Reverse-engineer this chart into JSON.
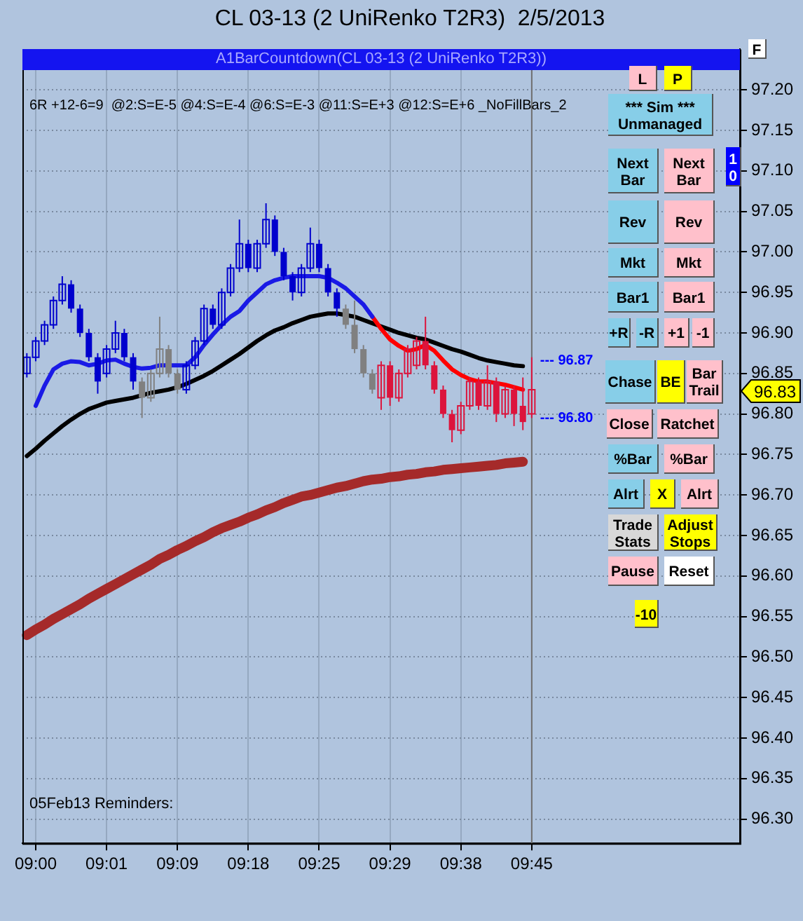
{
  "chart_data": {
    "type": "candlestick",
    "title": "CL 03-13 (2 UniRenko T2R3)  2/5/2013",
    "categories": [
      null,
      "09:00",
      null,
      null,
      null,
      null,
      null,
      null,
      null,
      "09:01",
      null,
      null,
      null,
      null,
      null,
      null,
      null,
      "09:09",
      null,
      null,
      null,
      null,
      null,
      null,
      null,
      "09:18",
      null,
      null,
      null,
      null,
      null,
      null,
      null,
      "09:25",
      null,
      null,
      null,
      null,
      null,
      null,
      null,
      "09:29",
      null,
      null,
      null,
      null,
      null,
      null,
      null,
      "09:38",
      null,
      null,
      null,
      null,
      null,
      null,
      null,
      "09:45",
      null,
      null,
      null,
      null,
      null,
      null,
      null,
      null,
      null,
      null,
      null,
      null,
      null,
      null,
      null,
      null,
      null,
      null,
      null,
      null,
      null,
      null,
      null
    ],
    "ohlc": [
      [
        96.85,
        96.875,
        96.845,
        96.87
      ],
      [
        96.87,
        96.895,
        96.865,
        96.89
      ],
      [
        96.89,
        96.915,
        96.885,
        96.91
      ],
      [
        96.91,
        96.945,
        96.905,
        96.94
      ],
      [
        96.94,
        96.97,
        96.935,
        96.96
      ],
      [
        96.96,
        96.965,
        96.925,
        96.93
      ],
      [
        96.93,
        96.935,
        96.895,
        96.9
      ],
      [
        96.9,
        96.905,
        96.865,
        96.87
      ],
      [
        96.87,
        96.875,
        96.825,
        96.84
      ],
      [
        96.85,
        96.885,
        96.845,
        96.88
      ],
      [
        96.88,
        96.915,
        96.875,
        96.9
      ],
      [
        96.9,
        96.905,
        96.865,
        96.87
      ],
      [
        96.87,
        96.875,
        96.83,
        96.84
      ],
      [
        96.84,
        96.845,
        96.795,
        96.82
      ],
      [
        96.82,
        96.855,
        96.815,
        96.85
      ],
      [
        96.85,
        96.92,
        96.845,
        96.88
      ],
      [
        96.88,
        96.885,
        96.845,
        96.85
      ],
      [
        96.85,
        96.855,
        96.825,
        96.83
      ],
      [
        96.83,
        96.865,
        96.825,
        96.86
      ],
      [
        96.86,
        96.895,
        96.855,
        96.89
      ],
      [
        96.89,
        96.935,
        96.885,
        96.93
      ],
      [
        96.93,
        96.935,
        96.905,
        96.91
      ],
      [
        96.91,
        96.955,
        96.905,
        96.95
      ],
      [
        96.95,
        96.985,
        96.945,
        96.98
      ],
      [
        96.98,
        97.04,
        96.975,
        97.01
      ],
      [
        97.01,
        97.015,
        96.975,
        96.98
      ],
      [
        96.98,
        97.015,
        96.975,
        97.01
      ],
      [
        97.01,
        97.06,
        97.005,
        97.04
      ],
      [
        97.04,
        97.045,
        96.995,
        97.0
      ],
      [
        97.0,
        97.005,
        96.965,
        96.97
      ],
      [
        96.97,
        96.975,
        96.94,
        96.95
      ],
      [
        96.95,
        96.985,
        96.945,
        96.98
      ],
      [
        96.98,
        97.03,
        96.975,
        97.01
      ],
      [
        97.01,
        97.015,
        96.975,
        96.98
      ],
      [
        96.98,
        96.985,
        96.945,
        96.95
      ],
      [
        96.95,
        96.955,
        96.92,
        96.93
      ],
      [
        96.93,
        96.935,
        96.905,
        96.91
      ],
      [
        96.91,
        96.94,
        96.875,
        96.88
      ],
      [
        96.88,
        96.885,
        96.845,
        96.85
      ],
      [
        96.85,
        96.855,
        96.825,
        96.83
      ],
      [
        96.82,
        96.865,
        96.805,
        96.86
      ],
      [
        96.86,
        96.865,
        96.81,
        96.82
      ],
      [
        96.82,
        96.855,
        96.815,
        96.85
      ],
      [
        96.85,
        96.885,
        96.845,
        96.88
      ],
      [
        96.86,
        96.895,
        96.855,
        96.89
      ],
      [
        96.89,
        96.92,
        96.855,
        96.86
      ],
      [
        96.86,
        96.865,
        96.825,
        96.83
      ],
      [
        96.83,
        96.835,
        96.795,
        96.8
      ],
      [
        96.8,
        96.805,
        96.765,
        96.78
      ],
      [
        96.78,
        96.815,
        96.775,
        96.81
      ],
      [
        96.81,
        96.845,
        96.805,
        96.84
      ],
      [
        96.84,
        96.845,
        96.805,
        96.81
      ],
      [
        96.81,
        96.86,
        96.805,
        96.84
      ],
      [
        96.84,
        96.845,
        96.79,
        96.8
      ],
      [
        96.8,
        96.835,
        96.795,
        96.83
      ],
      [
        96.83,
        96.835,
        96.785,
        96.8
      ],
      [
        96.81,
        96.845,
        96.78,
        96.79
      ],
      [
        96.8,
        96.87,
        96.795,
        96.83
      ],
      null,
      null,
      null,
      null,
      null,
      null,
      null,
      null,
      null,
      null,
      null,
      null,
      null,
      null,
      null,
      null,
      null,
      null,
      null,
      null,
      null,
      null,
      null
    ],
    "colors": [
      "#0000cd",
      "#0000cd",
      "#0000cd",
      "#0000cd",
      "#0000cd",
      "#0000cd",
      "#0000cd",
      "#0000cd",
      "#0000cd",
      "#0000cd",
      "#0000cd",
      "#0000cd",
      "#0000cd",
      "#808080",
      "#808080",
      "#808080",
      "#808080",
      "#808080",
      "#0000cd",
      "#0000cd",
      "#0000cd",
      "#0000cd",
      "#0000cd",
      "#0000cd",
      "#0000cd",
      "#0000cd",
      "#0000cd",
      "#0000cd",
      "#0000cd",
      "#0000cd",
      "#0000cd",
      "#0000cd",
      "#0000cd",
      "#0000cd",
      "#0000cd",
      "#0000cd",
      "#808080",
      "#808080",
      "#808080",
      "#808080",
      "#dc143c",
      "#dc143c",
      "#dc143c",
      "#dc143c",
      "#dc143c",
      "#dc143c",
      "#dc143c",
      "#dc143c",
      "#dc143c",
      "#dc143c",
      "#dc143c",
      "#dc143c",
      "#dc143c",
      "#dc143c",
      "#dc143c",
      "#dc143c",
      "#dc143c",
      "#dc143c",
      null,
      null,
      null,
      null,
      null,
      null,
      null,
      null,
      null,
      null,
      null,
      null,
      null,
      null,
      null,
      null,
      null,
      null,
      null,
      null,
      null,
      null,
      null
    ],
    "series": [
      {
        "type": "line",
        "color": "#1a1ae6",
        "values": [
          null,
          96.81,
          96.835,
          96.855,
          96.862,
          96.865,
          96.864,
          96.86,
          96.862,
          96.866,
          96.867,
          96.862,
          96.858,
          96.856,
          96.857,
          96.86,
          96.86,
          96.86,
          96.86,
          96.87,
          96.885,
          96.898,
          96.91,
          96.92,
          96.927,
          96.94,
          96.95,
          96.96,
          96.965,
          96.968,
          96.97,
          96.97,
          96.97,
          96.97,
          96.968,
          96.962,
          96.955,
          96.945,
          96.935,
          96.92,
          null,
          null,
          null,
          null,
          null,
          null,
          null,
          null,
          null,
          null,
          null,
          null,
          null,
          null,
          null,
          null,
          null,
          null,
          null,
          null,
          null,
          null,
          null,
          null,
          null,
          null,
          null,
          null,
          null,
          null,
          null,
          null,
          null,
          null,
          null,
          null,
          null,
          null,
          null,
          null,
          null
        ]
      },
      {
        "type": "line",
        "color": "#ff0000",
        "values": [
          null,
          null,
          null,
          null,
          null,
          null,
          null,
          null,
          null,
          null,
          null,
          null,
          null,
          null,
          null,
          null,
          null,
          null,
          null,
          null,
          null,
          null,
          null,
          null,
          null,
          null,
          null,
          null,
          null,
          null,
          null,
          null,
          null,
          null,
          null,
          null,
          null,
          null,
          null,
          96.92,
          96.905,
          96.892,
          96.884,
          96.878,
          96.88,
          96.885,
          96.878,
          96.866,
          96.855,
          96.848,
          96.843,
          96.84,
          96.84,
          96.838,
          96.836,
          96.833,
          96.83,
          null,
          null,
          null,
          null,
          null,
          null,
          null,
          null,
          null,
          null,
          null,
          null,
          null,
          null,
          null,
          null,
          null,
          null,
          null,
          null,
          null,
          null,
          null,
          null
        ]
      },
      {
        "type": "line",
        "color": "#000000",
        "values": [
          96.748,
          96.757,
          96.767,
          96.776,
          96.785,
          96.793,
          96.8,
          96.806,
          96.81,
          96.814,
          96.816,
          96.818,
          96.82,
          96.823,
          96.826,
          96.828,
          96.83,
          96.833,
          96.837,
          96.842,
          96.847,
          96.853,
          96.86,
          96.867,
          96.874,
          96.882,
          96.89,
          96.897,
          96.903,
          96.907,
          96.912,
          96.916,
          96.92,
          96.922,
          96.924,
          96.924,
          96.922,
          96.92,
          96.916,
          96.912,
          96.908,
          96.904,
          96.9,
          96.897,
          96.894,
          96.892,
          96.888,
          96.884,
          96.88,
          96.877,
          96.873,
          96.869,
          96.866,
          96.864,
          96.862,
          96.86,
          96.859,
          null,
          null,
          null,
          null,
          null,
          null,
          null,
          null,
          null,
          null,
          null,
          null,
          null,
          null,
          null,
          null,
          null,
          null,
          null,
          null,
          null,
          null,
          null,
          null
        ]
      },
      {
        "type": "line",
        "color": "#a52a2a",
        "values": [
          96.527,
          96.534,
          96.54,
          96.547,
          96.553,
          96.559,
          96.565,
          96.572,
          96.578,
          96.584,
          96.59,
          96.596,
          96.602,
          96.608,
          96.614,
          96.621,
          96.626,
          96.632,
          96.637,
          96.643,
          96.648,
          96.654,
          96.659,
          96.663,
          96.667,
          96.672,
          96.676,
          96.681,
          96.685,
          96.69,
          96.694,
          96.698,
          96.7,
          96.703,
          96.706,
          96.709,
          96.711,
          96.714,
          96.717,
          96.719,
          96.72,
          96.722,
          96.723,
          96.725,
          96.726,
          96.728,
          96.729,
          96.731,
          96.732,
          96.733,
          96.734,
          96.735,
          96.736,
          96.737,
          96.739,
          96.74,
          96.741,
          null,
          null,
          null,
          null,
          null,
          null,
          null,
          null,
          null,
          null,
          null,
          null,
          null,
          null,
          null,
          null,
          null,
          null,
          null,
          null,
          null,
          null,
          null,
          null
        ]
      }
    ],
    "ylim": [
      96.27,
      97.25
    ],
    "yticks": [
      {
        "value": 96.3,
        "label": "96.30"
      },
      96.35,
      {
        "value": 96.4,
        "label": "96.40"
      },
      96.45,
      {
        "value": 96.5,
        "label": "96.50"
      },
      96.55,
      {
        "value": 96.6,
        "label": "96.60"
      },
      96.65,
      {
        "value": 96.7,
        "label": "96.70"
      },
      96.75,
      {
        "value": 96.8,
        "label": "96.80"
      },
      96.85,
      {
        "value": 96.9,
        "label": "96.90"
      },
      96.95,
      {
        "value": 97.0,
        "label": "97.00"
      },
      97.05,
      {
        "value": 97.1,
        "label": "97.10"
      },
      97.15,
      {
        "value": 97.2,
        "label": "97.20"
      }
    ],
    "ref_lines": [
      {
        "axis": "x",
        "value": "09:45",
        "color": "#707070"
      }
    ],
    "annotations": [
      "A1BarCountdown(CL 03-13 (2 UniRenko T2R3))",
      "6R +12-6=9  @2:S=E-5 @4:S=E-4 @6:S=E-3 @11:S=E+3 @12:S=E+6 _NoFillBars_2",
      "05Feb13 Reminders:",
      "--- 96.87",
      "--- 96.80",
      "96.83",
      "F",
      "10",
      "L",
      "P",
      "*** Sim *** Unmanaged",
      "Next Bar",
      "Next Bar",
      "Rev",
      "Rev",
      "Mkt",
      "Mkt",
      "Bar1",
      "Bar1",
      "+R",
      "-R",
      "+1",
      "-1",
      "Chase",
      "BE",
      "Bar Trail",
      "Close",
      "Ratchet",
      "%Bar",
      "%Bar",
      "Alrt",
      "X",
      "Alrt",
      "Trade Stats",
      "Adjust Stops",
      "Pause",
      "Reset",
      "-10"
    ],
    "grid": true,
    "legend": false,
    "marker": "none"
  }
}
